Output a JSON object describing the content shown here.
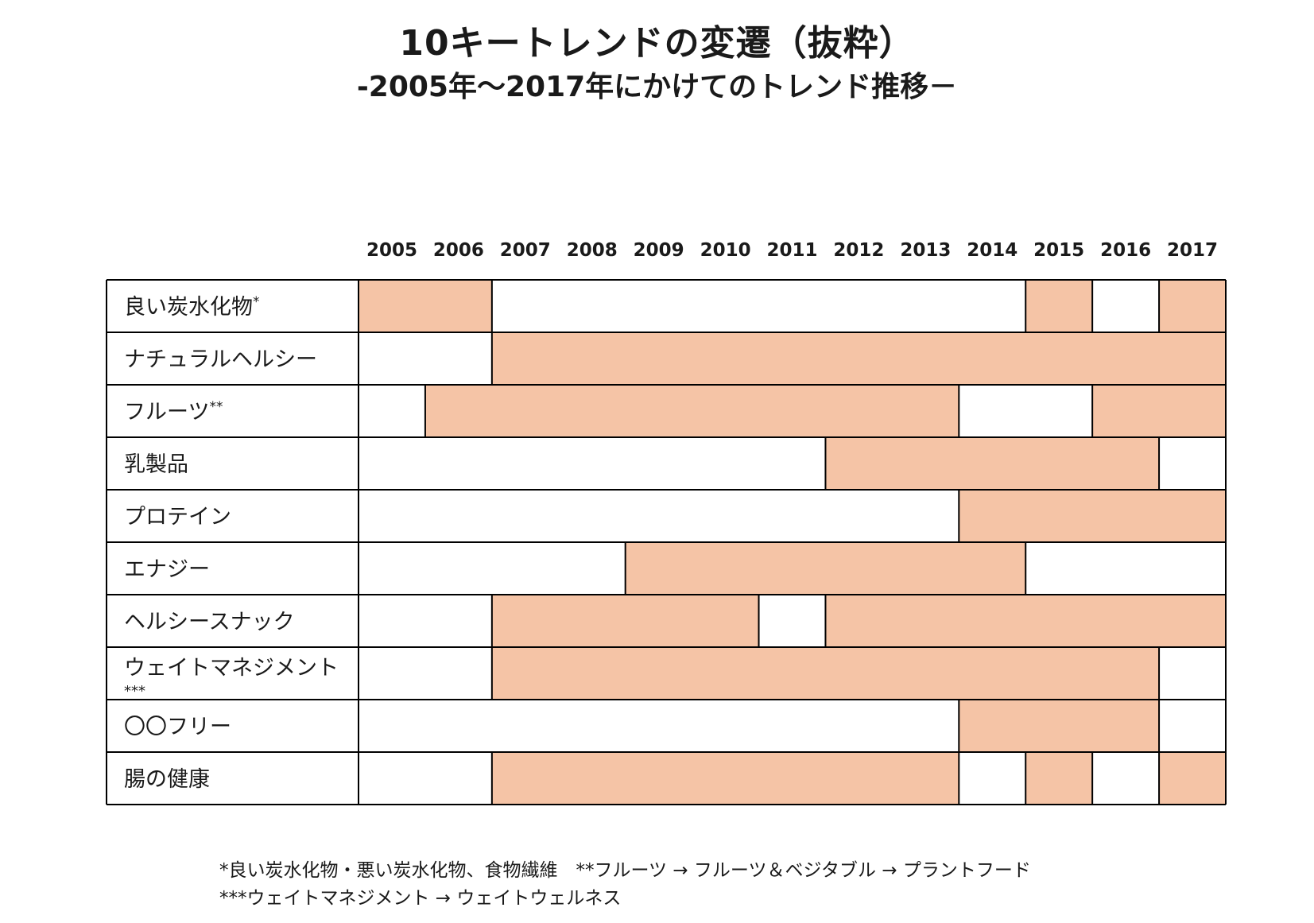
{
  "chart_data": {
    "type": "timeline",
    "title": "10キートレンドの変遷（抜粋）",
    "subtitle": "-2005年～2017年にかけてのトレンド推移－",
    "years": [
      "2005",
      "2006",
      "2007",
      "2008",
      "2009",
      "2010",
      "2011",
      "2012",
      "2013",
      "2014",
      "2015",
      "2016",
      "2017"
    ],
    "rows": [
      {
        "label": "良い炭水化物",
        "note": "*",
        "active_years": [
          "2005",
          "2006",
          "2015",
          "2017"
        ]
      },
      {
        "label": "ナチュラルヘルシー",
        "note": "",
        "active_years": [
          "2007",
          "2008",
          "2009",
          "2010",
          "2011",
          "2012",
          "2013",
          "2014",
          "2015",
          "2016",
          "2017"
        ]
      },
      {
        "label": "フルーツ",
        "note": "**",
        "active_years": [
          "2006",
          "2007",
          "2008",
          "2009",
          "2010",
          "2011",
          "2012",
          "2013",
          "2016",
          "2017"
        ]
      },
      {
        "label": "乳製品",
        "note": "",
        "active_years": [
          "2012",
          "2013",
          "2014",
          "2015",
          "2016"
        ]
      },
      {
        "label": "プロテイン",
        "note": "",
        "active_years": [
          "2014",
          "2015",
          "2016",
          "2017"
        ]
      },
      {
        "label": "エナジー",
        "note": "",
        "active_years": [
          "2009",
          "2010",
          "2011",
          "2012",
          "2013",
          "2014"
        ]
      },
      {
        "label": "ヘルシースナック",
        "note": "",
        "active_years": [
          "2007",
          "2008",
          "2009",
          "2010",
          "2012",
          "2013",
          "2014",
          "2015",
          "2016",
          "2017"
        ]
      },
      {
        "label": "ウェイトマネジメント",
        "note": "***",
        "active_years": [
          "2007",
          "2008",
          "2009",
          "2010",
          "2011",
          "2012",
          "2013",
          "2014",
          "2015",
          "2016"
        ]
      },
      {
        "label": "〇〇フリー",
        "note": "",
        "active_years": [
          "2014",
          "2015",
          "2016"
        ]
      },
      {
        "label": "腸の健康",
        "note": "",
        "active_years": [
          "2007",
          "2008",
          "2009",
          "2010",
          "2011",
          "2012",
          "2013",
          "2015",
          "2017"
        ]
      }
    ],
    "highlight_color": "#f5c4a6",
    "grid_color": "#000000"
  },
  "footnotes": [
    "*良い炭水化物・悪い炭水化物、食物繊維　**フルーツ → フルーツ＆ベジタブル → プラントフード",
    "***ウェイトマネジメント → ウェイトウェルネス"
  ]
}
